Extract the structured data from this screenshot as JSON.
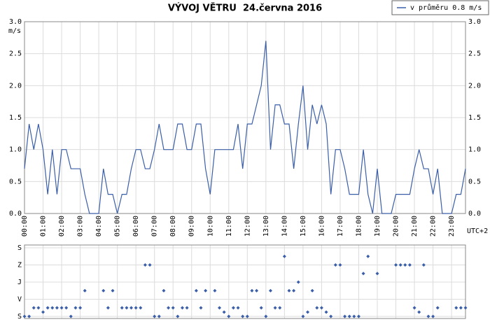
{
  "chart_data": [
    {
      "type": "line",
      "title": "VÝVOJ VĚTRU  24.června 2016",
      "ylabel": "m/s",
      "xlabel": "UTC+2",
      "categories": [
        "00:00",
        null,
        null,
        null,
        "01:00",
        null,
        null,
        null,
        "02:00",
        null,
        null,
        null,
        "03:00",
        null,
        null,
        null,
        "04:00",
        null,
        null,
        null,
        "05:00",
        null,
        null,
        null,
        "06:00",
        null,
        null,
        null,
        "07:00",
        null,
        null,
        null,
        "08:00",
        null,
        null,
        null,
        "09:00",
        null,
        null,
        null,
        "10:00",
        null,
        null,
        null,
        "11:00",
        null,
        null,
        null,
        "12:00",
        null,
        null,
        null,
        "13:00",
        null,
        null,
        null,
        "14:00",
        null,
        null,
        null,
        "15:00",
        null,
        null,
        null,
        "16:00",
        null,
        null,
        null,
        "17:00",
        null,
        null,
        null,
        "18:00",
        null,
        null,
        null,
        "19:00",
        null,
        null,
        null,
        "20:00",
        null,
        null,
        null,
        "21:00",
        null,
        null,
        null,
        "22:00",
        null,
        null,
        null,
        "23:00",
        null,
        null,
        null
      ],
      "series": [
        {
          "name": "v průměru 0.8 m/s",
          "color": "#3a5ea8",
          "values": [
            0.7,
            1.4,
            1.0,
            1.4,
            1.0,
            0.3,
            1.0,
            0.3,
            1.0,
            1.0,
            0.7,
            0.7,
            0.7,
            0.3,
            0.0,
            0.0,
            0.0,
            0.7,
            0.3,
            0.3,
            0.0,
            0.3,
            0.3,
            0.7,
            1.0,
            1.0,
            0.7,
            0.7,
            1.0,
            1.4,
            1.0,
            1.0,
            1.0,
            1.4,
            1.4,
            1.0,
            1.0,
            1.4,
            1.4,
            0.7,
            0.3,
            1.0,
            1.0,
            1.0,
            1.0,
            1.0,
            1.4,
            0.7,
            1.4,
            1.4,
            1.7,
            2.0,
            2.7,
            1.0,
            1.7,
            1.7,
            1.4,
            1.4,
            0.7,
            1.4,
            2.0,
            1.0,
            1.7,
            1.4,
            1.7,
            1.4,
            0.3,
            1.0,
            1.0,
            0.7,
            0.3,
            0.3,
            0.3,
            1.0,
            0.3,
            0.0,
            0.7,
            0.0,
            0.0,
            0.0,
            0.3,
            0.3,
            0.3,
            0.3,
            0.7,
            1.0,
            0.7,
            0.7,
            0.3,
            0.7,
            0.0,
            0.0,
            0.0,
            0.3,
            0.3,
            0.7
          ]
        }
      ],
      "ylim": [
        0,
        3
      ],
      "yticks": [
        {
          "value": 0,
          "label": "0.0"
        },
        0.5,
        {
          "value": 1,
          "label": "1.0"
        },
        1.5,
        {
          "value": 2,
          "label": "2.0"
        },
        2.5,
        {
          "value": 3,
          "label": "3.0"
        }
      ],
      "grid": true,
      "legend": "top-right"
    },
    {
      "type": "scatter",
      "color": "#3a5ea8",
      "values": [
        0,
        0,
        45,
        45,
        22.5,
        45,
        45,
        45,
        45,
        45,
        0,
        45,
        45,
        135,
        null,
        null,
        null,
        135,
        45,
        135,
        null,
        45,
        45,
        45,
        45,
        45,
        270,
        270,
        0,
        0,
        135,
        45,
        45,
        0,
        45,
        45,
        null,
        135,
        45,
        135,
        null,
        135,
        45,
        22.5,
        0,
        45,
        45,
        0,
        0,
        135,
        135,
        45,
        0,
        135,
        45,
        45,
        315,
        135,
        135,
        180,
        0,
        22.5,
        135,
        45,
        45,
        22.5,
        0,
        270,
        270,
        0,
        0,
        0,
        0,
        225,
        315,
        null,
        225,
        null,
        null,
        null,
        270,
        270,
        270,
        270,
        45,
        22.5,
        270,
        0,
        0,
        45,
        null,
        null,
        null,
        45,
        45,
        45
      ],
      "ylim": [
        0,
        360
      ],
      "yticks": [
        {
          "value": 0,
          "label": "S"
        },
        {
          "value": 90,
          "label": "V"
        },
        {
          "value": 180,
          "label": "J"
        },
        {
          "value": 270,
          "label": "Z"
        },
        {
          "value": 360,
          "label": "S"
        }
      ],
      "grid": true
    }
  ]
}
